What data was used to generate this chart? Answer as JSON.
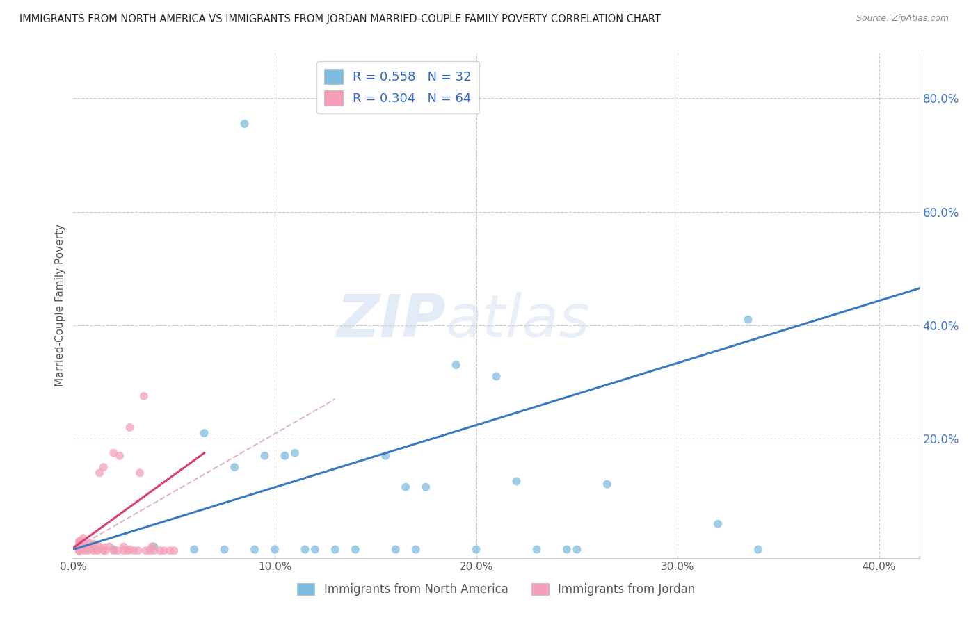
{
  "title": "IMMIGRANTS FROM NORTH AMERICA VS IMMIGRANTS FROM JORDAN MARRIED-COUPLE FAMILY POVERTY CORRELATION CHART",
  "source": "Source: ZipAtlas.com",
  "ylabel": "Married-Couple Family Poverty",
  "legend_blue_R": "R = 0.558",
  "legend_blue_N": "N = 32",
  "legend_pink_R": "R = 0.304",
  "legend_pink_N": "N = 64",
  "legend_blue_label": "Immigrants from North America",
  "legend_pink_label": "Immigrants from Jordan",
  "xlim": [
    0.0,
    0.42
  ],
  "ylim": [
    -0.01,
    0.88
  ],
  "xticklabels": [
    "0.0%",
    "10.0%",
    "20.0%",
    "30.0%",
    "40.0%"
  ],
  "xtick_vals": [
    0.0,
    0.1,
    0.2,
    0.3,
    0.4
  ],
  "ytick_right_labels": [
    "20.0%",
    "40.0%",
    "60.0%",
    "80.0%"
  ],
  "ytick_right_values": [
    0.2,
    0.4,
    0.6,
    0.8
  ],
  "watermark": "ZIPatlas",
  "blue_color": "#7fbde0",
  "pink_color": "#f4a0b8",
  "blue_line_color": "#3a7bbf",
  "pink_line_color": "#d94070",
  "pink_dash_color": "#d494b0",
  "grid_color": "#cccccc",
  "background_color": "#ffffff",
  "blue_scatter_x": [
    0.085,
    0.04,
    0.06,
    0.065,
    0.075,
    0.08,
    0.09,
    0.095,
    0.1,
    0.105,
    0.11,
    0.115,
    0.12,
    0.13,
    0.14,
    0.155,
    0.16,
    0.165,
    0.17,
    0.175,
    0.19,
    0.2,
    0.21,
    0.22,
    0.23,
    0.245,
    0.25,
    0.265,
    0.32,
    0.335,
    0.34,
    0.02
  ],
  "blue_scatter_y": [
    0.755,
    0.01,
    0.005,
    0.21,
    0.005,
    0.15,
    0.005,
    0.17,
    0.005,
    0.17,
    0.175,
    0.005,
    0.005,
    0.005,
    0.005,
    0.17,
    0.005,
    0.115,
    0.005,
    0.115,
    0.33,
    0.005,
    0.31,
    0.125,
    0.005,
    0.005,
    0.005,
    0.12,
    0.05,
    0.41,
    0.005,
    0.005
  ],
  "pink_scatter_x": [
    0.003,
    0.003,
    0.003,
    0.003,
    0.003,
    0.003,
    0.003,
    0.003,
    0.003,
    0.003,
    0.003,
    0.003,
    0.003,
    0.003,
    0.003,
    0.003,
    0.003,
    0.003,
    0.003,
    0.003,
    0.005,
    0.005,
    0.005,
    0.005,
    0.005,
    0.005,
    0.005,
    0.007,
    0.008,
    0.008,
    0.008,
    0.01,
    0.01,
    0.01,
    0.012,
    0.012,
    0.013,
    0.013,
    0.015,
    0.015,
    0.015,
    0.016,
    0.018,
    0.02,
    0.02,
    0.022,
    0.023,
    0.025,
    0.025,
    0.027,
    0.028,
    0.028,
    0.03,
    0.032,
    0.033,
    0.035,
    0.036,
    0.038,
    0.039,
    0.04,
    0.043,
    0.045,
    0.048,
    0.05
  ],
  "pink_scatter_y": [
    0.003,
    0.003,
    0.003,
    0.003,
    0.003,
    0.003,
    0.003,
    0.003,
    0.003,
    0.003,
    0.003,
    0.006,
    0.008,
    0.01,
    0.01,
    0.013,
    0.015,
    0.015,
    0.018,
    0.02,
    0.003,
    0.005,
    0.008,
    0.01,
    0.012,
    0.015,
    0.025,
    0.003,
    0.005,
    0.01,
    0.015,
    0.003,
    0.008,
    0.015,
    0.003,
    0.005,
    0.01,
    0.14,
    0.003,
    0.008,
    0.15,
    0.003,
    0.01,
    0.003,
    0.175,
    0.003,
    0.17,
    0.003,
    0.01,
    0.003,
    0.005,
    0.22,
    0.003,
    0.003,
    0.14,
    0.275,
    0.003,
    0.003,
    0.01,
    0.003,
    0.003,
    0.003,
    0.003,
    0.003
  ],
  "blue_line_x": [
    0.0,
    0.42
  ],
  "blue_line_y": [
    0.005,
    0.465
  ],
  "pink_line_x": [
    0.0,
    0.065
  ],
  "pink_line_y": [
    0.008,
    0.175
  ],
  "pink_dash_line_x": [
    0.0,
    0.13
  ],
  "pink_dash_line_y": [
    0.005,
    0.27
  ]
}
